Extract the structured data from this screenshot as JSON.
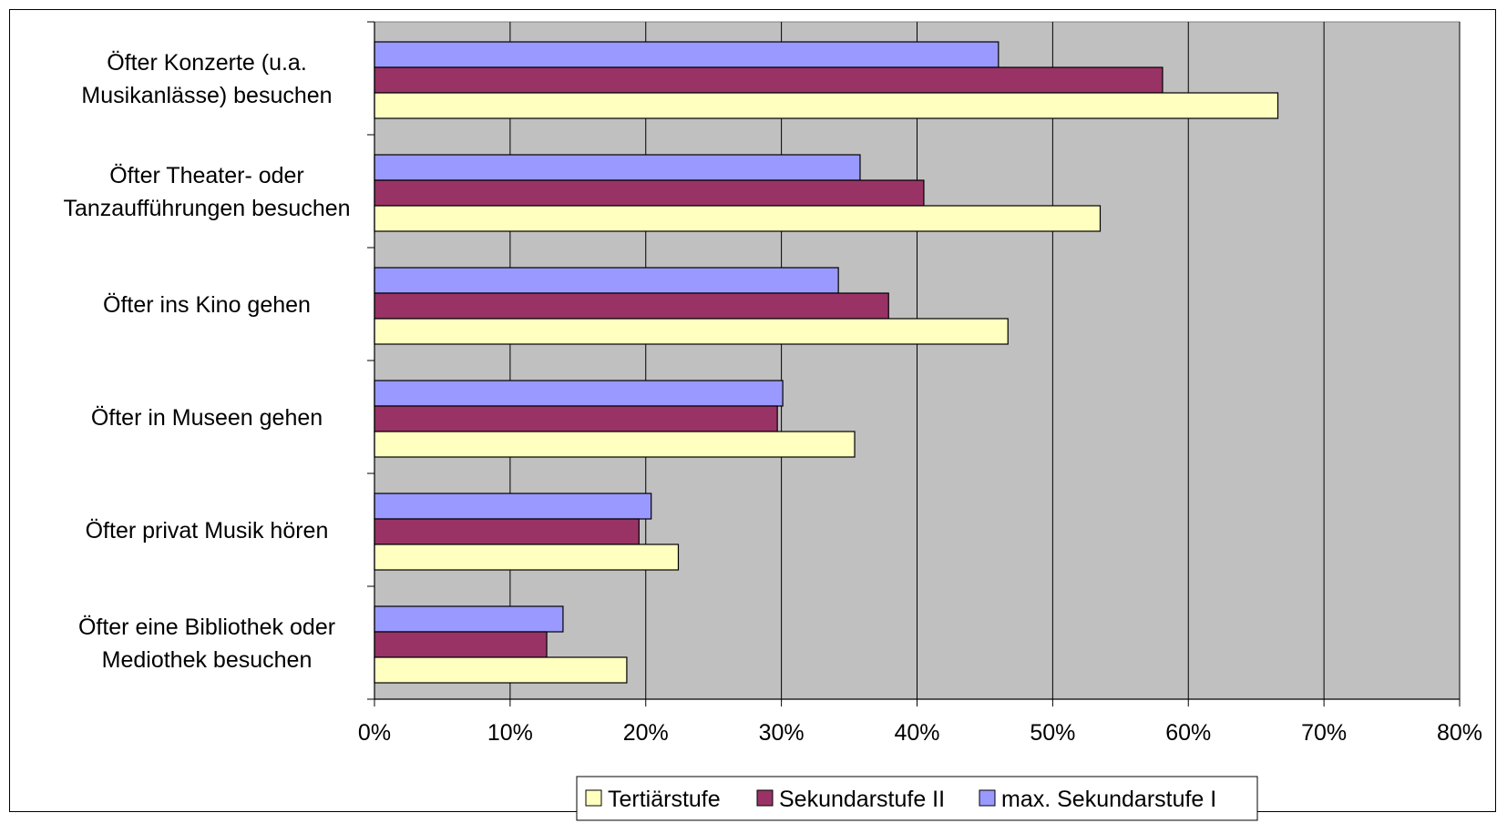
{
  "colors": {
    "plot_background": "#C0C0C0",
    "gridline": "#000000",
    "bar_outline": "#000000",
    "tertiar": "#FFFFC0",
    "sekundar2": "#993366",
    "sekundar1": "#9999FF"
  },
  "chart_data": {
    "type": "bar",
    "orientation": "horizontal",
    "categories": [
      [
        "Öfter Konzerte (u.a.",
        "Musikanlässe) besuchen"
      ],
      [
        "Öfter Theater-  oder",
        "Tanzaufführungen besuchen"
      ],
      [
        "Öfter ins Kino gehen"
      ],
      [
        "Öfter in Museen gehen"
      ],
      [
        "Öfter privat Musik hören"
      ],
      [
        "Öfter eine Bibliothek oder",
        "Mediothek besuchen"
      ]
    ],
    "series": [
      {
        "name": "max. Sekundarstufe I",
        "color": "#9999FF",
        "values": [
          46,
          35.8,
          34.2,
          30.1,
          20.4,
          13.9
        ]
      },
      {
        "name": "Sekundarstufe II",
        "color": "#993366",
        "values": [
          58.1,
          40.5,
          37.9,
          29.7,
          19.5,
          12.7
        ]
      },
      {
        "name": "Tertiärstufe",
        "color": "#FFFFC0",
        "values": [
          66.6,
          53.5,
          46.7,
          35.4,
          22.4,
          18.6
        ]
      }
    ],
    "legend_order": [
      "Tertiärstufe",
      "Sekundarstufe II",
      "max. Sekundarstufe I"
    ],
    "xlim": [
      0,
      80
    ],
    "xticks": [
      "0%",
      "10%",
      "20%",
      "30%",
      "40%",
      "50%",
      "60%",
      "70%",
      "80%"
    ],
    "grid": true,
    "legend_position": "bottom"
  }
}
